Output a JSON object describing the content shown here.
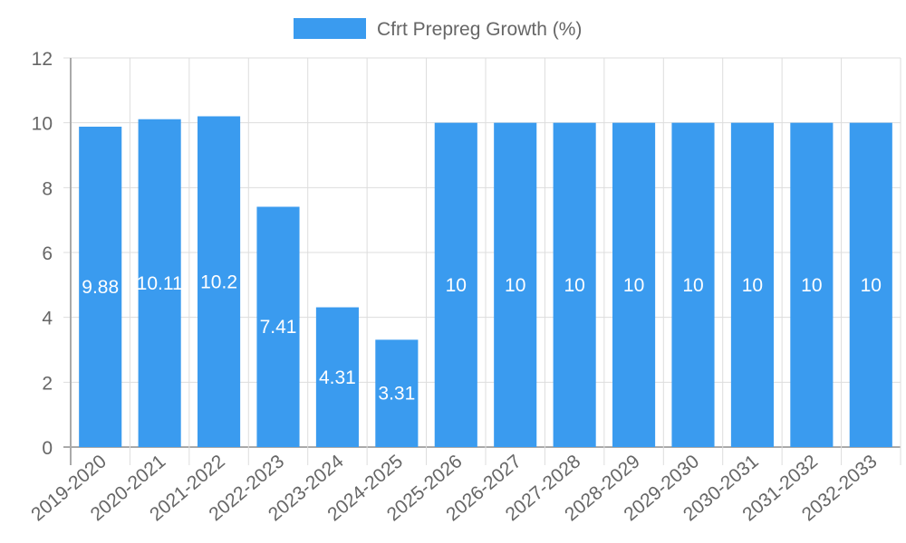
{
  "chart_data": {
    "type": "bar",
    "title": "",
    "xlabel": "",
    "ylabel": "",
    "legend": {
      "position": "top",
      "entries": [
        "Cfrt Prepreg Growth (%)"
      ]
    },
    "grid": true,
    "ylim": [
      0,
      12
    ],
    "yticks": [
      0,
      2,
      4,
      6,
      8,
      10,
      12
    ],
    "categories": [
      "2019-2020",
      "2020-2021",
      "2021-2022",
      "2022-2023",
      "2023-2024",
      "2024-2025",
      "2025-2026",
      "2026-2027",
      "2027-2028",
      "2028-2029",
      "2029-2030",
      "2030-2031",
      "2031-2032",
      "2032-2033"
    ],
    "series": [
      {
        "name": "Cfrt Prepreg Growth (%)",
        "color": "#3a9bef",
        "values": [
          9.88,
          10.11,
          10.2,
          7.41,
          4.31,
          3.31,
          10,
          10,
          10,
          10,
          10,
          10,
          10,
          10
        ],
        "labels": [
          "9.88",
          "10.11",
          "10.2",
          "7.41",
          "4.31",
          "3.31",
          "10",
          "10",
          "10",
          "10",
          "10",
          "10",
          "10",
          "10"
        ]
      }
    ]
  },
  "colors": {
    "bar": "#3a9bef",
    "grid": "#dddddd",
    "axis": "#aaaaaa",
    "tick_text": "#666666",
    "label_text": "#ffffff"
  }
}
